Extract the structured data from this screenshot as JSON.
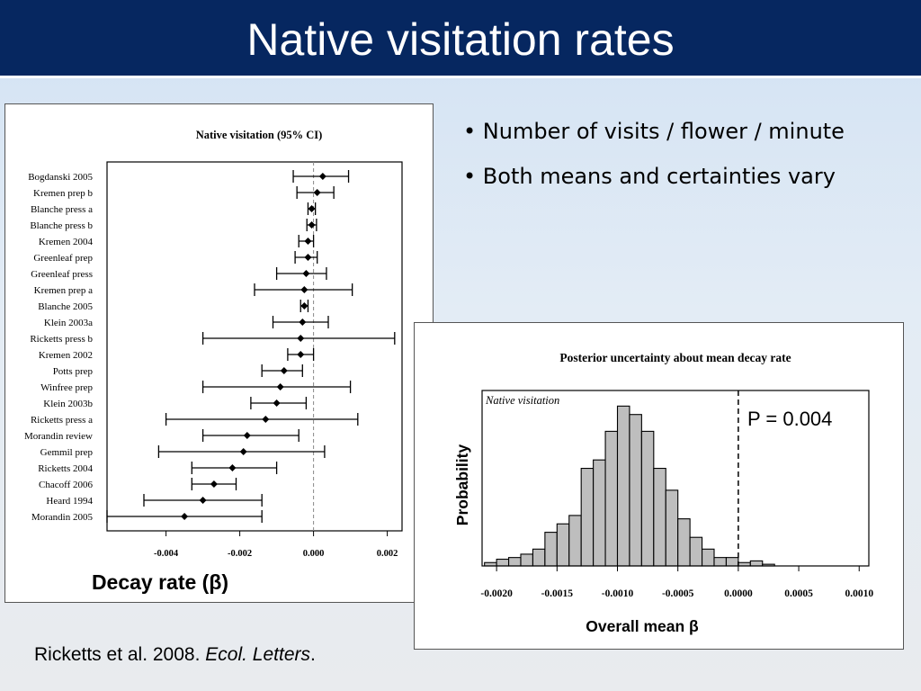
{
  "slide": {
    "title": "Native visitation rates",
    "bullets": [
      "Number of visits / flower / minute",
      "Both means and certainties vary"
    ],
    "citation": {
      "authors": "Ricketts et al. 2008. ",
      "journal": "Ecol. Letters",
      "trail": "."
    }
  },
  "colors": {
    "title_bar": "#062760",
    "hist_fill": "#bebebe",
    "ink": "#000000",
    "reference_line": "#888888"
  },
  "chart_data": [
    {
      "type": "forest",
      "title": "Native visitation (95%  CI)",
      "xlabel": "Decay rate (β)",
      "xlim": [
        -0.0056,
        0.0024
      ],
      "xticks": [
        "-0.004",
        "-0.002",
        "0.000",
        "0.002"
      ],
      "xtick_values": [
        -0.004,
        -0.002,
        0.0,
        0.002
      ],
      "reference_x": 0.0,
      "studies": [
        {
          "label": "Bogdanski 2005",
          "mean": 0.00025,
          "lo": -0.00055,
          "hi": 0.00095
        },
        {
          "label": "Kremen prep b",
          "mean": 0.0001,
          "lo": -0.00045,
          "hi": 0.00055
        },
        {
          "label": "Blanche press a",
          "mean": -5e-05,
          "lo": -0.00015,
          "hi": 5e-05
        },
        {
          "label": "Blanche press b",
          "mean": -5e-05,
          "lo": -0.00018,
          "hi": 8e-05
        },
        {
          "label": "Kremen 2004",
          "mean": -0.00015,
          "lo": -0.0004,
          "hi": 0.0
        },
        {
          "label": "Greenleaf prep",
          "mean": -0.00015,
          "lo": -0.0005,
          "hi": 0.0001
        },
        {
          "label": "Greenleaf press",
          "mean": -0.0002,
          "lo": -0.001,
          "hi": 0.00035
        },
        {
          "label": "Kremen prep a",
          "mean": -0.00025,
          "lo": -0.0016,
          "hi": 0.00105
        },
        {
          "label": "Blanche 2005",
          "mean": -0.00025,
          "lo": -0.00035,
          "hi": -0.00015
        },
        {
          "label": "Klein 2003a",
          "mean": -0.0003,
          "lo": -0.0011,
          "hi": 0.0004
        },
        {
          "label": "Ricketts press b",
          "mean": -0.00035,
          "lo": -0.003,
          "hi": 0.0022
        },
        {
          "label": "Kremen 2002",
          "mean": -0.00035,
          "lo": -0.0007,
          "hi": 0.0
        },
        {
          "label": "Potts prep",
          "mean": -0.0008,
          "lo": -0.0014,
          "hi": -0.0003
        },
        {
          "label": "Winfree prep",
          "mean": -0.0009,
          "lo": -0.003,
          "hi": 0.001
        },
        {
          "label": "Klein 2003b",
          "mean": -0.001,
          "lo": -0.0017,
          "hi": -0.0002
        },
        {
          "label": "Ricketts press a",
          "mean": -0.0013,
          "lo": -0.004,
          "hi": 0.0012
        },
        {
          "label": "Morandin review",
          "mean": -0.0018,
          "lo": -0.003,
          "hi": -0.0004
        },
        {
          "label": "Gemmil prep",
          "mean": -0.0019,
          "lo": -0.0042,
          "hi": 0.0003
        },
        {
          "label": "Ricketts 2004",
          "mean": -0.0022,
          "lo": -0.0033,
          "hi": -0.001
        },
        {
          "label": "Chacoff 2006",
          "mean": -0.0027,
          "lo": -0.0033,
          "hi": -0.0021
        },
        {
          "label": "Heard 1994",
          "mean": -0.003,
          "lo": -0.0046,
          "hi": -0.0014
        },
        {
          "label": "Morandin 2005",
          "mean": -0.0035,
          "lo": -0.0056,
          "hi": -0.0014
        }
      ]
    },
    {
      "type": "histogram",
      "title": "Posterior uncertainty about mean decay rate",
      "inset_label": "Native visitation",
      "annotation": "P = 0.004",
      "xlabel": "Overall mean β",
      "ylabel": "Probability",
      "xlim": [
        -0.00212,
        0.00108
      ],
      "xticks": [
        "-0.0020",
        "-0.0015",
        "-0.0010",
        "-0.0005",
        "0.0000",
        "0.0005",
        "0.0010"
      ],
      "xtick_values": [
        -0.002,
        -0.0015,
        -0.001,
        -0.0005,
        0.0,
        0.0005,
        0.001
      ],
      "reference_x": 0.0,
      "reference_style": "dashed",
      "bin_width": 0.0001,
      "bin_starts": [
        -0.0021,
        -0.002,
        -0.0019,
        -0.0018,
        -0.0017,
        -0.0016,
        -0.0015,
        -0.0014,
        -0.0013,
        -0.0012,
        -0.0011,
        -0.001,
        -0.0009,
        -0.0008,
        -0.0007,
        -0.0006,
        -0.0005,
        -0.0004,
        -0.0003,
        -0.0002,
        -0.0001,
        0.0,
        0.0001,
        0.0002
      ],
      "counts": [
        2,
        4,
        5,
        7,
        10,
        20,
        25,
        30,
        58,
        63,
        80,
        95,
        90,
        80,
        58,
        45,
        28,
        17,
        10,
        5,
        5,
        2,
        3,
        1
      ],
      "ymax": 100
    }
  ]
}
